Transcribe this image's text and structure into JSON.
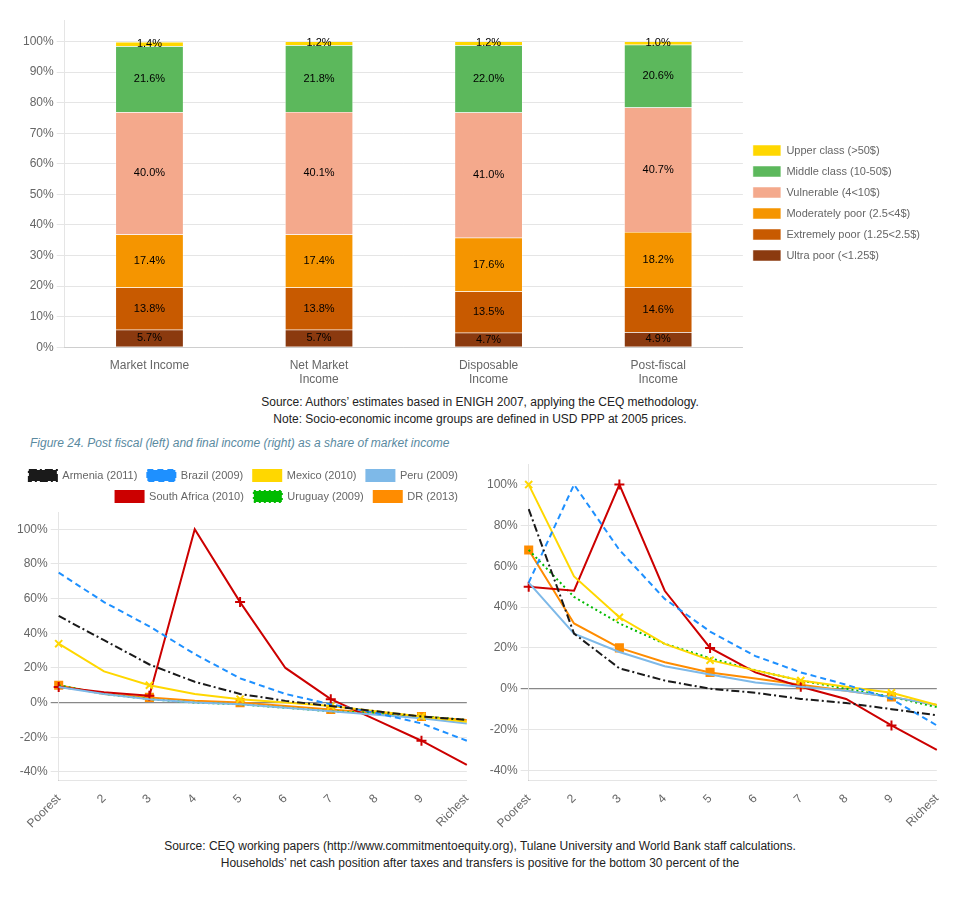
{
  "chart_data": [
    {
      "type": "bar",
      "stacked": true,
      "data_labels": true,
      "grid": true,
      "legend": "right",
      "categories": [
        "Market Income",
        "Net Market\nIncome",
        "Disposable\nIncome",
        "Post-fiscal\nIncome"
      ],
      "series": [
        {
          "name": "Ultra poor (<1.25$)",
          "color": "#8B3A0F",
          "values": [
            5.7,
            5.7,
            4.7,
            4.9
          ],
          "value_labels": [
            "5.7%",
            "5.7%",
            "4.7%",
            "4.9%"
          ]
        },
        {
          "name": "Extremely poor (1.25<2.5$)",
          "color": "#C85A00",
          "values": [
            13.8,
            13.8,
            13.5,
            14.6
          ],
          "value_labels": [
            "13.8%",
            "13.8%",
            "13.5%",
            "14.6%"
          ]
        },
        {
          "name": "Moderately poor (2.5<4$)",
          "color": "#F59500",
          "values": [
            17.4,
            17.4,
            17.6,
            18.2
          ],
          "value_labels": [
            "17.4%",
            "17.4%",
            "17.6%",
            "18.2%"
          ]
        },
        {
          "name": "Vulnerable (4<10$)",
          "color": "#F4A98C",
          "values": [
            40.0,
            40.1,
            41.0,
            40.7
          ],
          "value_labels": [
            "40.0%",
            "40.1%",
            "41.0%",
            "40.7%"
          ]
        },
        {
          "name": "Middle class (10-50$)",
          "color": "#5CB85C",
          "values": [
            21.6,
            21.8,
            22.0,
            20.6
          ],
          "value_labels": [
            "21.6%",
            "21.8%",
            "22.0%",
            "20.6%"
          ]
        },
        {
          "name": "Upper class (>50$)",
          "color": "#FFD700",
          "values": [
            1.4,
            1.2,
            1.2,
            1.0
          ],
          "value_labels": [
            "1.4%",
            "1.2%",
            "1.2%",
            "1.0%"
          ]
        }
      ],
      "ylim": [
        0,
        107
      ],
      "yticks": [
        {
          "value": 0,
          "label": "0%"
        },
        {
          "value": 10,
          "label": "10%"
        },
        {
          "value": 20,
          "label": "20%"
        },
        {
          "value": 30,
          "label": "30%"
        },
        {
          "value": 40,
          "label": "40%"
        },
        {
          "value": 50,
          "label": "50%"
        },
        {
          "value": 60,
          "label": "60%"
        },
        {
          "value": 70,
          "label": "70%"
        },
        {
          "value": 80,
          "label": "80%"
        },
        {
          "value": 90,
          "label": "90%"
        },
        {
          "value": 100,
          "label": "100%"
        }
      ],
      "annotations": [
        "Source: Authors’ estimates based in ENIGH 2007, applying the CEQ methodology.",
        "Note: Socio-economic income groups are defined in USD PPP at 2005 prices."
      ]
    },
    {
      "type": "line",
      "grid": true,
      "legend": "upper right",
      "categories": [
        "Poorest",
        "2",
        "3",
        "4",
        "5",
        "6",
        "7",
        "8",
        "9",
        "Richest"
      ],
      "series": [
        {
          "name": "Armenia (2011)",
          "color": "#1a1a1a",
          "line_style": "dashdot",
          "values": [
            50,
            36,
            22,
            12,
            5,
            1,
            -2,
            -5,
            -8,
            -10
          ]
        },
        {
          "name": "Brazil (2009)",
          "color": "#1E90FF",
          "line_style": "dashed",
          "values": [
            75,
            58,
            44,
            28,
            14,
            5,
            -1,
            -6,
            -12,
            -22
          ]
        },
        {
          "name": "Mexico (2010)",
          "color": "#FFD700",
          "line_style": "solid",
          "marker": "x",
          "values": [
            34,
            18,
            10,
            5,
            2,
            0,
            -2,
            -5,
            -8,
            -11
          ]
        },
        {
          "name": "Peru (2009)",
          "color": "#7EB9E8",
          "line_style": "solid",
          "values": [
            9,
            5,
            2,
            0,
            -1,
            -3,
            -5,
            -7,
            -9,
            -12
          ]
        },
        {
          "name": "South Africa (2010)",
          "color": "#CC0000",
          "line_style": "solid",
          "marker": "plus",
          "values": [
            9,
            6,
            4,
            100,
            58,
            20,
            2,
            -10,
            -22,
            -36
          ]
        },
        {
          "name": "Uruguay (2009)",
          "color": "#00BB00",
          "line_style": "dotted",
          "values": [
            10,
            5,
            2,
            0,
            -1,
            -3,
            -5,
            -6,
            -8,
            -10
          ]
        },
        {
          "name": "DR (2013)",
          "color": "#FF8C00",
          "line_style": "solid",
          "marker": "square",
          "values": [
            10,
            5,
            3,
            1,
            0,
            -2,
            -4,
            -6,
            -8,
            -10
          ]
        }
      ],
      "ylim": [
        -45,
        110
      ],
      "yticks": [
        {
          "value": -40,
          "label": "-40%"
        },
        {
          "value": -20,
          "label": "-20%"
        },
        {
          "value": 0,
          "label": "0%"
        },
        {
          "value": 20,
          "label": "20%"
        },
        {
          "value": 40,
          "label": "40%"
        },
        {
          "value": 60,
          "label": "60%"
        },
        {
          "value": 80,
          "label": "80%"
        },
        {
          "value": 100,
          "label": "100%"
        }
      ],
      "annotations": [
        "Figure 24. Post fiscal (left) and final income (right) as a share of market income"
      ]
    },
    {
      "type": "line",
      "grid": true,
      "categories": [
        "Poorest",
        "2",
        "3",
        "4",
        "5",
        "6",
        "7",
        "8",
        "9",
        "Richest"
      ],
      "series": [
        {
          "name": "Armenia (2011)",
          "color": "#1a1a1a",
          "line_style": "dashdot",
          "values": [
            88,
            27,
            10,
            4,
            0,
            -2,
            -5,
            -7,
            -10,
            -13
          ]
        },
        {
          "name": "Brazil (2009)",
          "color": "#1E90FF",
          "line_style": "dashed",
          "values": [
            52,
            100,
            68,
            44,
            28,
            16,
            8,
            2,
            -5,
            -18
          ]
        },
        {
          "name": "Mexico (2010)",
          "color": "#FFD700",
          "line_style": "solid",
          "marker": "x",
          "values": [
            100,
            55,
            35,
            22,
            14,
            9,
            4,
            1,
            -2,
            -8
          ]
        },
        {
          "name": "Peru (2009)",
          "color": "#7EB9E8",
          "line_style": "solid",
          "values": [
            52,
            27,
            18,
            11,
            7,
            3,
            1,
            -1,
            -4,
            -8
          ]
        },
        {
          "name": "South Africa (2010)",
          "color": "#CC0000",
          "line_style": "solid",
          "marker": "plus",
          "values": [
            50,
            48,
            100,
            48,
            20,
            8,
            1,
            -5,
            -18,
            -30
          ]
        },
        {
          "name": "Uruguay (2009)",
          "color": "#00BB00",
          "line_style": "dotted",
          "values": [
            68,
            45,
            32,
            22,
            15,
            9,
            4,
            0,
            -4,
            -9
          ]
        },
        {
          "name": "DR (2013)",
          "color": "#FF8C00",
          "line_style": "solid",
          "marker": "square",
          "values": [
            68,
            32,
            20,
            13,
            8,
            5,
            2,
            -1,
            -4,
            -8
          ]
        }
      ],
      "ylim": [
        -45,
        110
      ],
      "yticks": [
        {
          "value": -40,
          "label": "-40%"
        },
        {
          "value": -20,
          "label": "-20%"
        },
        {
          "value": 0,
          "label": "0%"
        },
        {
          "value": 20,
          "label": "20%"
        },
        {
          "value": 40,
          "label": "40%"
        },
        {
          "value": 60,
          "label": "60%"
        },
        {
          "value": 80,
          "label": "80%"
        },
        {
          "value": 100,
          "label": "100%"
        }
      ],
      "annotations": [
        "Source: CEQ working papers (http://www.commitmentoequity.org), Tulane University and World Bank staff calculations.",
        "Households’ net cash position after taxes and transfers is positive for the bottom 30 percent of the"
      ]
    }
  ]
}
